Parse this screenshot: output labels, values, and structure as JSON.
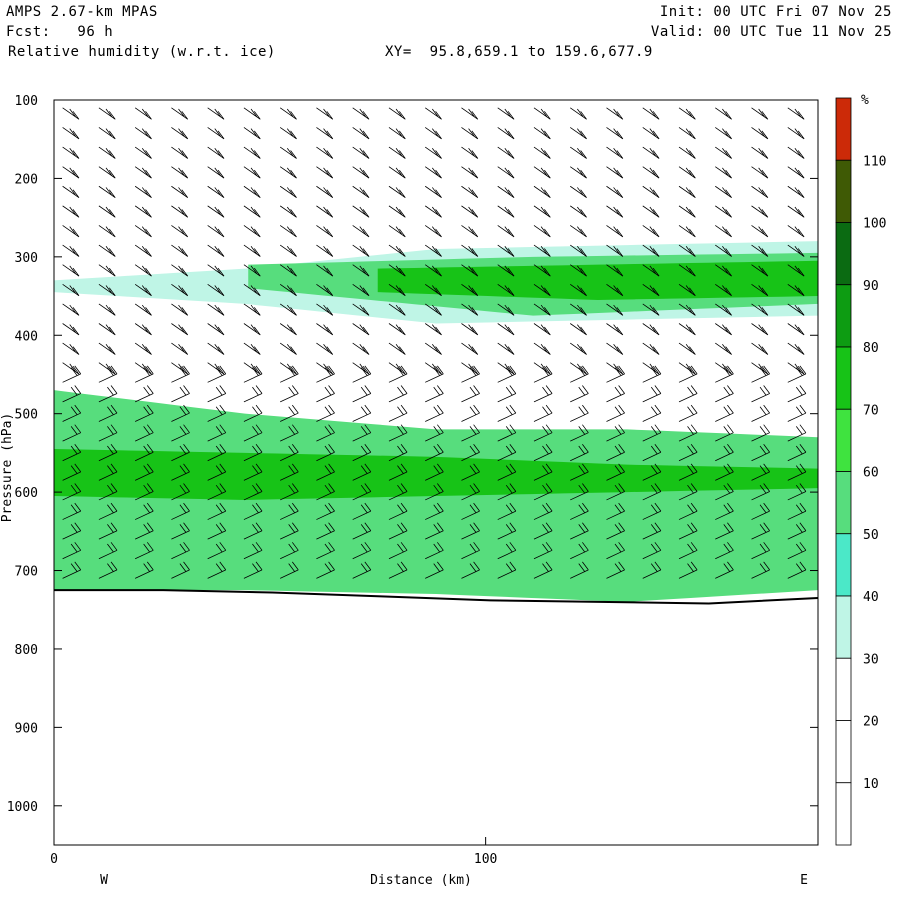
{
  "header": {
    "model": "AMPS 2.67-km MPAS",
    "fcst": "Fcst:   96 h",
    "field": "Relative humidity (w.r.t. ice)",
    "xy": "XY=  95.8,659.1 to 159.6,677.9",
    "init": "Init: 00 UTC Fri 07 Nov 25",
    "valid": "Valid: 00 UTC Tue 11 Nov 25"
  },
  "colorbar": {
    "unit": "%",
    "levels": [
      10,
      20,
      30,
      40,
      50,
      60,
      70,
      80,
      90,
      100,
      110
    ],
    "colors": [
      "#ffffff",
      "#ffffff",
      "#ffffff",
      "#bff5e6",
      "#4be8c8",
      "#57dd7d",
      "#3fe33f",
      "#17c317",
      "#0d9c12",
      "#0b6b12",
      "#3f5a05",
      "#cc2a08"
    ]
  },
  "chart_data": {
    "type": "heatmap",
    "title": "Relative humidity (w.r.t. ice)",
    "xlabel": "Distance (km)",
    "ylabel": "Pressure (hPa)",
    "xlim": [
      0,
      177
    ],
    "ylim": [
      1050,
      100
    ],
    "x_ticks": [
      0,
      100
    ],
    "y_ticks": [
      100,
      200,
      300,
      400,
      500,
      600,
      700,
      800,
      900,
      1000
    ],
    "x_end_labels": {
      "left": "W",
      "right": "E"
    },
    "bands": [
      {
        "name": "upper",
        "color_index": 3,
        "x": [
          0,
          177
        ],
        "top": [
          330,
          315,
          290,
          285,
          280
        ],
        "bottom": [
          345,
          360,
          385,
          380,
          375
        ]
      },
      {
        "name": "upper-core",
        "color_index": 5,
        "x": [
          45,
          177
        ],
        "top": [
          310,
          300,
          295
        ],
        "bottom": [
          340,
          375,
          360
        ]
      },
      {
        "name": "upper-core2",
        "color_index": 7,
        "x": [
          75,
          177
        ],
        "top": [
          315,
          310,
          305
        ],
        "bottom": [
          345,
          355,
          350
        ]
      },
      {
        "name": "lower",
        "color_index": 5,
        "x": [
          0,
          177
        ],
        "top": [
          470,
          500,
          520,
          520,
          530
        ],
        "bottom": [
          725,
          725,
          730,
          740,
          725
        ]
      },
      {
        "name": "lower-core",
        "color_index": 7,
        "x": [
          0,
          177
        ],
        "top": [
          545,
          550,
          555,
          565,
          570
        ],
        "bottom": [
          605,
          610,
          605,
          600,
          595
        ]
      }
    ],
    "terrain_top_hPa": [
      725,
      725,
      728,
      733,
      738,
      740,
      742,
      735
    ]
  }
}
